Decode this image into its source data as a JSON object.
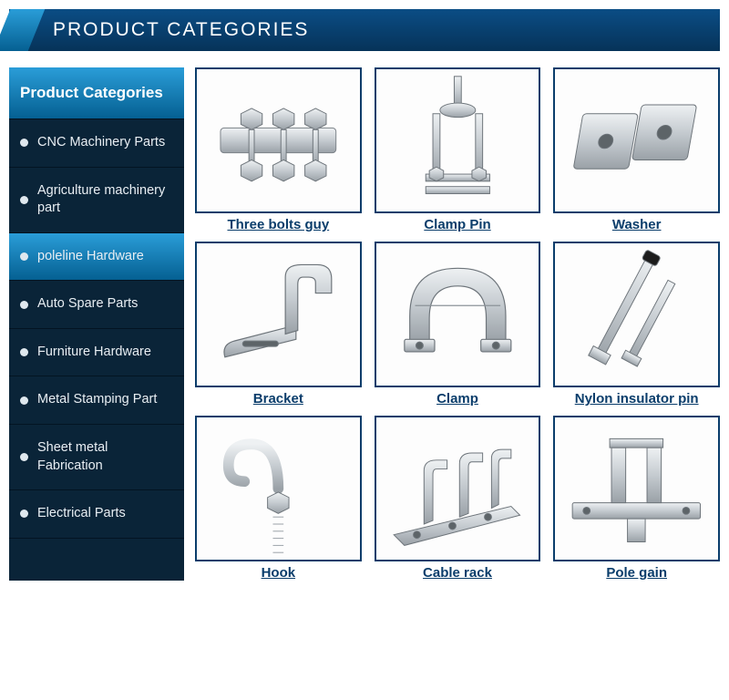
{
  "colors": {
    "header_gradient_top": "#0b4d85",
    "header_gradient_bottom": "#063359",
    "accent_gradient_top": "#2a9dd8",
    "accent_gradient_bottom": "#056092",
    "sidebar_bg": "#0a2438",
    "sidebar_text": "#e8eef3",
    "thumb_border": "#0a3d6b",
    "caption_color": "#0a3d6b",
    "metal_light": "#dfe3e6",
    "metal_mid": "#b9bfc4",
    "metal_dark": "#8b9298"
  },
  "header": {
    "title": "PRODUCT CATEGORIES"
  },
  "sidebar": {
    "title": "Product Categories",
    "items": [
      {
        "label": "CNC Machinery Parts",
        "active": false
      },
      {
        "label": "Agriculture machinery part",
        "active": false
      },
      {
        "label": "poleline Hardware",
        "active": true
      },
      {
        "label": "Auto Spare Parts",
        "active": false
      },
      {
        "label": "Furniture Hardware",
        "active": false
      },
      {
        "label": "Metal Stamping Part",
        "active": false
      },
      {
        "label": "Sheet metal Fabrication",
        "active": false
      },
      {
        "label": "Electrical Parts",
        "active": false
      }
    ]
  },
  "products": [
    {
      "label": "Three bolts guy",
      "icon": "three-bolts"
    },
    {
      "label": "Clamp Pin",
      "icon": "clamp-pin"
    },
    {
      "label": "Washer",
      "icon": "washer"
    },
    {
      "label": "Bracket",
      "icon": "bracket"
    },
    {
      "label": "Clamp",
      "icon": "clamp"
    },
    {
      "label": "Nylon insulator pin",
      "icon": "nylon-pin"
    },
    {
      "label": "Hook",
      "icon": "hook"
    },
    {
      "label": "Cable rack",
      "icon": "cable-rack"
    },
    {
      "label": "Pole gain",
      "icon": "pole-gain"
    }
  ]
}
